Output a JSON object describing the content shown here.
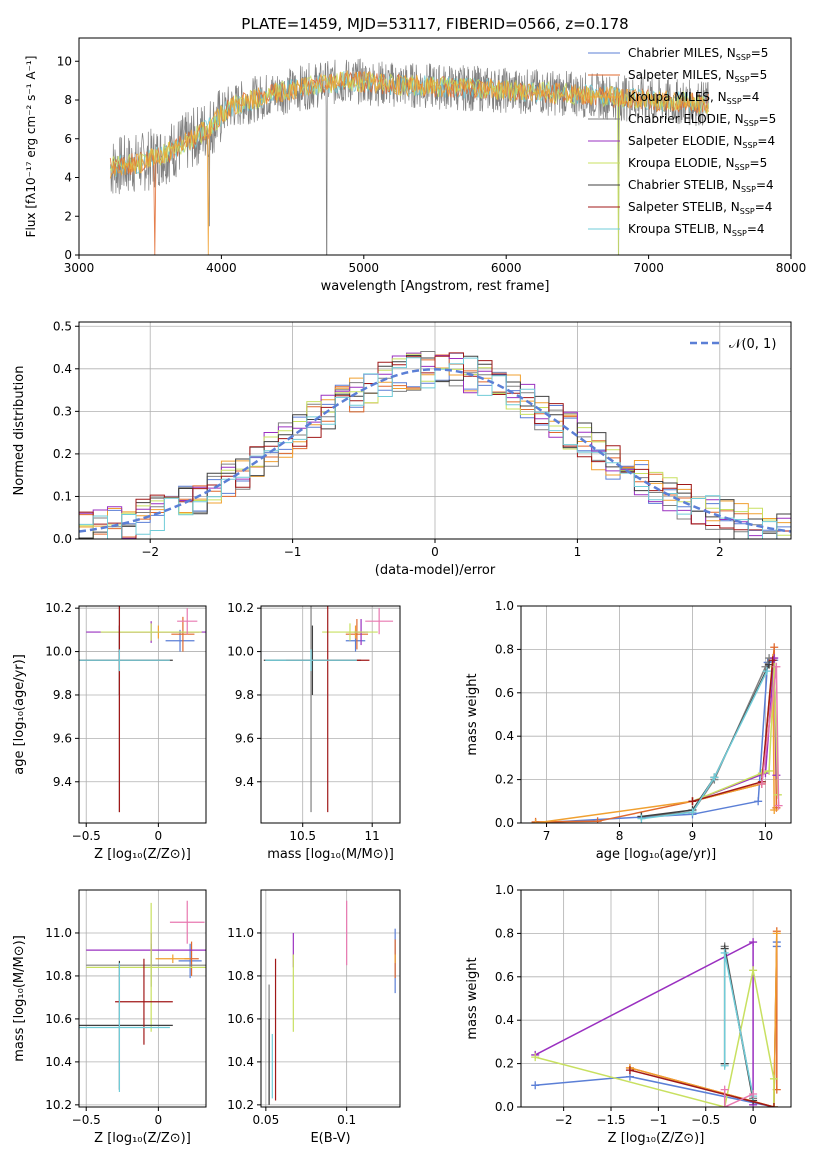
{
  "figure_title": "PLATE=1459, MJD=53117, FIBERID=0566, z=0.178",
  "colors": {
    "Chabrier MILES": "#5b7fd6",
    "Salpeter MILES": "#e0692e",
    "Kroupa MILES": "#f0a030",
    "Chabrier ELODIE": "#808080",
    "Salpeter ELODIE": "#9a30c0",
    "Kroupa ELODIE": "#c8e060",
    "Chabrier STELIB": "#404040",
    "Salpeter STELIB": "#a01818",
    "Kroupa STELIB": "#70ccd8",
    "pink": "#e878b0"
  },
  "chart_data": [
    {
      "id": "spectrum",
      "type": "line",
      "xlabel": "wavelength [Angstrom, rest frame]",
      "ylabel": "Flux [fλ10⁻¹⁷ erg cm⁻² s⁻¹ A⁻¹]",
      "xlim": [
        3000,
        8000
      ],
      "ylim": [
        0,
        11.2
      ],
      "xticks": [
        3000,
        4000,
        5000,
        6000,
        7000,
        8000
      ],
      "yticks": [
        0,
        2,
        4,
        6,
        8,
        10
      ],
      "legend_position": "top-right",
      "legend": [
        {
          "label": "Chabrier MILES, N",
          "sub": "SSP",
          "tail": "=5"
        },
        {
          "label": "Salpeter MILES, N",
          "sub": "SSP",
          "tail": "=5"
        },
        {
          "label": "Kroupa MILES, N",
          "sub": "SSP",
          "tail": "=4"
        },
        {
          "label": "Chabrier ELODIE, N",
          "sub": "SSP",
          "tail": "=5"
        },
        {
          "label": "Salpeter ELODIE, N",
          "sub": "SSP",
          "tail": "=4"
        },
        {
          "label": "Kroupa ELODIE, N",
          "sub": "SSP",
          "tail": "=5"
        },
        {
          "label": "Chabrier STELIB, N",
          "sub": "SSP",
          "tail": "=4"
        },
        {
          "label": "Salpeter STELIB, N",
          "sub": "SSP",
          "tail": "=4"
        },
        {
          "label": "Kroupa STELIB, N",
          "sub": "SSP",
          "tail": "=4"
        }
      ],
      "continuum": [
        [
          3220,
          4.5
        ],
        [
          3450,
          4.8
        ],
        [
          3600,
          5.2
        ],
        [
          3800,
          6.0
        ],
        [
          3950,
          6.8
        ],
        [
          4050,
          7.6
        ],
        [
          4300,
          8.2
        ],
        [
          4600,
          8.7
        ],
        [
          4900,
          9.0
        ],
        [
          5200,
          8.8
        ],
        [
          5500,
          8.7
        ],
        [
          6000,
          8.5
        ],
        [
          6500,
          8.3
        ],
        [
          7000,
          8.0
        ],
        [
          7400,
          7.8
        ]
      ]
    },
    {
      "id": "residuals",
      "type": "histogram",
      "xlabel": "(data-model)/error",
      "ylabel": "Normed distribution",
      "xlim": [
        -2.5,
        2.5
      ],
      "ylim": [
        0,
        0.51
      ],
      "xticks": [
        -2,
        -1,
        0,
        1,
        2
      ],
      "yticks": [
        0.0,
        0.1,
        0.2,
        0.3,
        0.4,
        0.5
      ],
      "reference_label": "𝒩(0, 1)",
      "legend_position": "top-right"
    },
    {
      "id": "age-vs-Z",
      "type": "errorbar",
      "xlabel": "Z [log₁₀(Z/Z⊙)]",
      "ylabel": "age  [log₁₀(age/yr)]",
      "xlim": [
        -0.55,
        0.33
      ],
      "ylim": [
        9.21,
        10.21
      ],
      "xticks": [
        -0.5,
        0.0
      ],
      "yticks": [
        9.4,
        9.6,
        9.8,
        10.0,
        10.2
      ],
      "points": [
        {
          "series": "Chabrier MILES",
          "x": 0.15,
          "y": 10.05,
          "xerr": 0.1,
          "yerr": 0.05
        },
        {
          "series": "Salpeter MILES",
          "x": 0.17,
          "y": 10.08,
          "xerr": 0.08,
          "yerr": 0.08
        },
        {
          "series": "Kroupa MILES",
          "x": 0.0,
          "y": 10.09,
          "xerr": 0.28,
          "yerr": 0.03
        },
        {
          "series": "Chabrier ELODIE",
          "x": -0.27,
          "y": 9.96,
          "xerr": 0.02,
          "yerr": 0.7
        },
        {
          "series": "Salpeter ELODIE",
          "x": -0.05,
          "y": 10.09,
          "xerr": 0.45,
          "yerr": 0.05
        },
        {
          "series": "Kroupa ELODIE",
          "x": -0.05,
          "y": 10.09,
          "xerr": 0.35,
          "yerr": 0.04
        },
        {
          "series": "Chabrier STELIB",
          "x": -0.27,
          "y": 9.96,
          "xerr": 0.37,
          "yerr": 0.16
        },
        {
          "series": "Salpeter STELIB",
          "x": -0.27,
          "y": 9.96,
          "xerr": 0.35,
          "yerr": 0.7
        },
        {
          "series": "Kroupa STELIB",
          "x": -0.27,
          "y": 9.96,
          "xerr": 0.35,
          "yerr": 0.05
        },
        {
          "series": "pink",
          "x": 0.2,
          "y": 10.14,
          "xerr": 0.07,
          "yerr": 0.06
        }
      ]
    },
    {
      "id": "age-vs-mass",
      "type": "errorbar",
      "xlabel": "mass [log₁₀(M/M⊙)]",
      "ylabel": "",
      "xlim": [
        10.2,
        11.2
      ],
      "ylim": [
        9.21,
        10.21
      ],
      "xticks": [
        10.5,
        11.0
      ],
      "yticks": [
        9.4,
        9.6,
        9.8,
        10.0,
        10.2
      ],
      "points": [
        {
          "series": "Chabrier MILES",
          "x": 10.88,
          "y": 10.05,
          "xerr": 0.07,
          "yerr": 0.05
        },
        {
          "series": "Salpeter MILES",
          "x": 10.89,
          "y": 10.08,
          "xerr": 0.08,
          "yerr": 0.07
        },
        {
          "series": "Kroupa MILES",
          "x": 10.88,
          "y": 10.09,
          "xerr": 0.07,
          "yerr": 0.03
        },
        {
          "series": "Chabrier ELODIE",
          "x": 10.56,
          "y": 9.96,
          "xerr": 0.02,
          "yerr": 0.7
        },
        {
          "series": "Salpeter ELODIE",
          "x": 10.92,
          "y": 10.09,
          "xerr": 0.05,
          "yerr": 0.06
        },
        {
          "series": "Kroupa ELODIE",
          "x": 10.84,
          "y": 10.09,
          "xerr": 0.2,
          "yerr": 0.04
        },
        {
          "series": "Chabrier STELIB",
          "x": 10.57,
          "y": 9.96,
          "xerr": 0.35,
          "yerr": 0.16
        },
        {
          "series": "Salpeter STELIB",
          "x": 10.68,
          "y": 9.96,
          "xerr": 0.3,
          "yerr": 0.7
        },
        {
          "series": "Kroupa STELIB",
          "x": 10.56,
          "y": 9.96,
          "xerr": 0.33,
          "yerr": 0.05
        },
        {
          "series": "pink",
          "x": 11.05,
          "y": 10.14,
          "xerr": 0.1,
          "yerr": 0.06
        }
      ]
    },
    {
      "id": "massweight-vs-age",
      "type": "line",
      "xlabel": "age  [log₁₀(age/yr)]",
      "ylabel": "mass weight",
      "xlim": [
        6.65,
        10.35
      ],
      "ylim": [
        0,
        1.0
      ],
      "xticks": [
        7,
        8,
        9,
        10
      ],
      "yticks": [
        0.0,
        0.2,
        0.4,
        0.6,
        0.8,
        1.0
      ],
      "series": [
        {
          "name": "Chabrier MILES",
          "points": [
            [
              6.85,
              0.0
            ],
            [
              9.0,
              0.04
            ],
            [
              9.9,
              0.1
            ],
            [
              10.03,
              0.74
            ],
            [
              10.12,
              0.75
            ]
          ]
        },
        {
          "name": "Salpeter MILES",
          "points": [
            [
              6.85,
              0.005
            ],
            [
              7.7,
              0.008
            ],
            [
              9.0,
              0.1
            ],
            [
              9.95,
              0.18
            ],
            [
              10.12,
              0.81
            ],
            [
              10.15,
              0.07
            ]
          ]
        },
        {
          "name": "Kroupa MILES",
          "points": [
            [
              6.85,
              0.0
            ],
            [
              9.0,
              0.1
            ],
            [
              9.95,
              0.18
            ],
            [
              10.1,
              0.76
            ],
            [
              10.12,
              0.06
            ]
          ]
        },
        {
          "name": "Chabrier ELODIE",
          "points": [
            [
              8.3,
              0.03
            ],
            [
              9.0,
              0.05
            ],
            [
              9.3,
              0.2
            ],
            [
              10.0,
              0.72
            ],
            [
              10.05,
              0.76
            ]
          ]
        },
        {
          "name": "Salpeter ELODIE",
          "points": [
            [
              9.0,
              0.1
            ],
            [
              10.0,
              0.23
            ],
            [
              10.12,
              0.76
            ],
            [
              10.15,
              0.22
            ]
          ]
        },
        {
          "name": "Kroupa ELODIE",
          "points": [
            [
              9.0,
              0.1
            ],
            [
              9.95,
              0.23
            ],
            [
              10.05,
              0.24
            ],
            [
              10.12,
              0.72
            ],
            [
              10.17,
              0.13
            ]
          ]
        },
        {
          "name": "Chabrier STELIB",
          "points": [
            [
              8.3,
              0.03
            ],
            [
              9.0,
              0.06
            ],
            [
              9.3,
              0.21
            ],
            [
              10.05,
              0.73
            ]
          ]
        },
        {
          "name": "Salpeter STELIB",
          "points": [
            [
              9.0,
              0.1
            ],
            [
              9.95,
              0.19
            ],
            [
              10.1,
              0.75
            ]
          ]
        },
        {
          "name": "Kroupa STELIB",
          "points": [
            [
              8.3,
              0.02
            ],
            [
              9.0,
              0.05
            ],
            [
              9.3,
              0.21
            ],
            [
              10.02,
              0.7
            ]
          ]
        },
        {
          "name": "pink",
          "points": [
            [
              9.95,
              0.18
            ],
            [
              10.15,
              0.72
            ],
            [
              10.18,
              0.08
            ]
          ]
        }
      ]
    },
    {
      "id": "mass-vs-Z",
      "type": "errorbar",
      "xlabel": "Z [log₁₀(Z/Z⊙)]",
      "ylabel": "mass [log₁₀(M/M⊙)]",
      "xlim": [
        -0.55,
        0.33
      ],
      "ylim": [
        10.19,
        11.2
      ],
      "xticks": [
        -0.5,
        0.0
      ],
      "yticks": [
        10.2,
        10.4,
        10.6,
        10.8,
        11.0
      ],
      "points": [
        {
          "series": "Chabrier MILES",
          "x": 0.22,
          "y": 10.87,
          "xerr": 0.08,
          "yerr": 0.08
        },
        {
          "series": "Salpeter MILES",
          "x": 0.23,
          "y": 10.88,
          "xerr": 0.05,
          "yerr": 0.08
        },
        {
          "series": "Kroupa MILES",
          "x": 0.1,
          "y": 10.88,
          "xerr": 0.12,
          "yerr": 0.02
        },
        {
          "series": "Chabrier ELODIE",
          "x": -0.05,
          "y": 10.85,
          "xerr": 0.45,
          "yerr": 0.1
        },
        {
          "series": "Salpeter ELODIE",
          "x": -0.05,
          "y": 10.92,
          "xerr": 0.45,
          "yerr": 0.08
        },
        {
          "series": "Kroupa ELODIE",
          "x": -0.05,
          "y": 10.84,
          "xerr": 0.45,
          "yerr": 0.3
        },
        {
          "series": "Chabrier STELIB",
          "x": -0.27,
          "y": 10.57,
          "xerr": 0.37,
          "yerr": 0.3
        },
        {
          "series": "Salpeter STELIB",
          "x": -0.1,
          "y": 10.68,
          "xerr": 0.2,
          "yerr": 0.2
        },
        {
          "series": "Kroupa STELIB",
          "x": -0.27,
          "y": 10.56,
          "xerr": 0.35,
          "yerr": 0.3
        },
        {
          "series": "pink",
          "x": 0.2,
          "y": 11.05,
          "xerr": 0.12,
          "yerr": 0.1
        }
      ]
    },
    {
      "id": "mass-vs-EBV",
      "type": "errorbar",
      "xlabel": "E(B-V)",
      "ylabel": "",
      "xlim": [
        0.047,
        0.133
      ],
      "ylim": [
        10.19,
        11.2
      ],
      "xticks": [
        0.05,
        0.1
      ],
      "yticks": [
        10.2,
        10.4,
        10.6,
        10.8,
        11.0
      ],
      "points": [
        {
          "series": "Chabrier MILES",
          "x": 0.13,
          "y": 10.87,
          "xerr": 0.0,
          "yerr": 0.15
        },
        {
          "series": "Salpeter MILES",
          "x": 0.13,
          "y": 10.88,
          "xerr": 0.0,
          "yerr": 0.09
        },
        {
          "series": "Kroupa MILES",
          "x": 0.13,
          "y": 10.88,
          "xerr": 0.0,
          "yerr": 0.02
        },
        {
          "series": "Chabrier ELODIE",
          "x": 0.052,
          "y": 10.48,
          "xerr": 0.0,
          "yerr": 0.28
        },
        {
          "series": "Salpeter ELODIE",
          "x": 0.067,
          "y": 10.92,
          "xerr": 0.0,
          "yerr": 0.08
        },
        {
          "series": "Kroupa ELODIE",
          "x": 0.067,
          "y": 10.72,
          "xerr": 0.0,
          "yerr": 0.18
        },
        {
          "series": "Chabrier STELIB",
          "x": 0.052,
          "y": 10.4,
          "xerr": 0.0,
          "yerr": 0.2
        },
        {
          "series": "Salpeter STELIB",
          "x": 0.056,
          "y": 10.55,
          "xerr": 0.0,
          "yerr": 0.33
        },
        {
          "series": "Kroupa STELIB",
          "x": 0.054,
          "y": 10.38,
          "xerr": 0.0,
          "yerr": 0.15
        },
        {
          "series": "pink",
          "x": 0.1,
          "y": 11.0,
          "xerr": 0.0,
          "yerr": 0.15
        }
      ]
    },
    {
      "id": "massweight-vs-Z",
      "type": "line",
      "xlabel": "Z [log₁₀(Z/Z⊙)]",
      "ylabel": "mass weight",
      "xlim": [
        -2.45,
        0.4
      ],
      "ylim": [
        0,
        1.0
      ],
      "xticks": [
        -2.0,
        -1.5,
        -1.0,
        -0.5,
        0.0
      ],
      "yticks": [
        0.0,
        0.2,
        0.4,
        0.6,
        0.8,
        1.0
      ],
      "series": [
        {
          "name": "Chabrier MILES",
          "points": [
            [
              -2.3,
              0.1
            ],
            [
              -1.3,
              0.14
            ],
            [
              0.22,
              0.0
            ],
            [
              0.25,
              0.76
            ],
            [
              0.25,
              0.74
            ]
          ]
        },
        {
          "name": "Salpeter MILES",
          "points": [
            [
              -1.3,
              0.18
            ],
            [
              0.22,
              0.0
            ],
            [
              0.25,
              0.81
            ],
            [
              0.25,
              0.08
            ]
          ]
        },
        {
          "name": "Kroupa MILES",
          "points": [
            [
              -1.3,
              0.18
            ],
            [
              0.22,
              0.0
            ],
            [
              0.25,
              0.8
            ]
          ]
        },
        {
          "name": "Chabrier ELODIE",
          "points": [
            [
              -0.3,
              0.2
            ],
            [
              -0.3,
              0.74
            ],
            [
              0.0,
              0.04
            ]
          ]
        },
        {
          "name": "Salpeter ELODIE",
          "points": [
            [
              -2.3,
              0.24
            ],
            [
              0.0,
              0.76
            ],
            [
              0.0,
              0.01
            ]
          ]
        },
        {
          "name": "Kroupa ELODIE",
          "points": [
            [
              -2.3,
              0.23
            ],
            [
              -0.3,
              0.0
            ],
            [
              0.0,
              0.63
            ],
            [
              0.22,
              0.13
            ],
            [
              0.22,
              0.0
            ]
          ]
        },
        {
          "name": "Chabrier STELIB",
          "points": [
            [
              -0.3,
              0.2
            ],
            [
              -0.3,
              0.73
            ],
            [
              0.0,
              0.03
            ]
          ]
        },
        {
          "name": "Salpeter STELIB",
          "points": [
            [
              -1.3,
              0.17
            ],
            [
              0.22,
              0.0
            ]
          ]
        },
        {
          "name": "Kroupa STELIB",
          "points": [
            [
              -0.3,
              0.19
            ],
            [
              -0.3,
              0.71
            ],
            [
              0.0,
              0.05
            ]
          ]
        },
        {
          "name": "pink",
          "points": [
            [
              -0.3,
              0.08
            ],
            [
              -0.3,
              0.0
            ],
            [
              0.0,
              0.06
            ]
          ]
        }
      ]
    }
  ]
}
